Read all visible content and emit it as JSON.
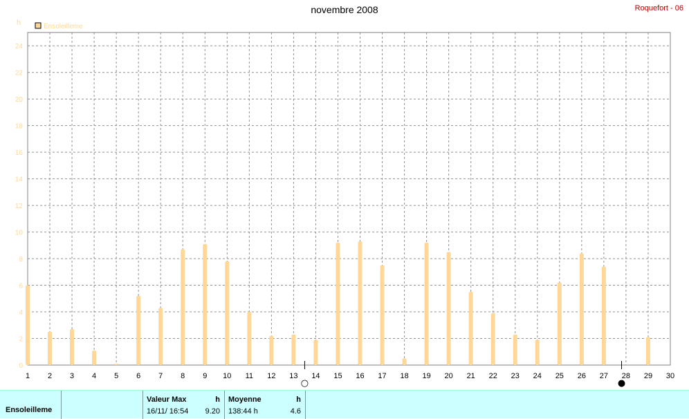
{
  "header": {
    "title": "novembre 2008",
    "station": "Roquefort - 06"
  },
  "legend": {
    "label": "Ensoleilleme",
    "color": "#ffd898"
  },
  "chart_data": {
    "type": "bar",
    "ylabel": "h",
    "ylim": [
      0,
      25
    ],
    "yticks": [
      0,
      2,
      4,
      6,
      8,
      10,
      12,
      14,
      16,
      18,
      20,
      22,
      24
    ],
    "xlim": [
      1,
      30
    ],
    "xticks": [
      1,
      2,
      3,
      4,
      5,
      6,
      7,
      8,
      9,
      10,
      11,
      12,
      13,
      14,
      15,
      16,
      17,
      18,
      19,
      20,
      21,
      22,
      23,
      24,
      25,
      26,
      27,
      28,
      29,
      30
    ],
    "grid": true,
    "legend_position": "top-left",
    "series": [
      {
        "name": "Ensoleilleme",
        "color": "#ffd898",
        "x": [
          1,
          2,
          3,
          4,
          5,
          6,
          7,
          8,
          9,
          10,
          11,
          12,
          13,
          14,
          15,
          16,
          17,
          18,
          19,
          20,
          21,
          22,
          23,
          24,
          25,
          26,
          27,
          28,
          29
        ],
        "values": [
          6.0,
          2.5,
          2.7,
          1.1,
          0.1,
          5.2,
          4.3,
          8.7,
          9.1,
          7.8,
          4.0,
          2.2,
          2.3,
          1.9,
          9.2,
          9.3,
          7.5,
          0.5,
          9.2,
          8.5,
          5.5,
          3.9,
          2.3,
          1.9,
          6.2,
          8.4,
          7.4,
          0.0,
          2.1
        ]
      }
    ],
    "moon_phases": [
      {
        "x": 13.5,
        "phase": "full",
        "symbol": "○"
      },
      {
        "x": 27.8,
        "phase": "new",
        "symbol": "●"
      }
    ]
  },
  "summary": {
    "name": "Ensoleilleme",
    "max": {
      "header": "Valeur Max",
      "unit": "h",
      "date": "16/11/  16:54",
      "value": "9.20"
    },
    "average": {
      "header": "Moyenne",
      "unit": "h",
      "total": "138:44 h",
      "value": "4.6"
    }
  }
}
